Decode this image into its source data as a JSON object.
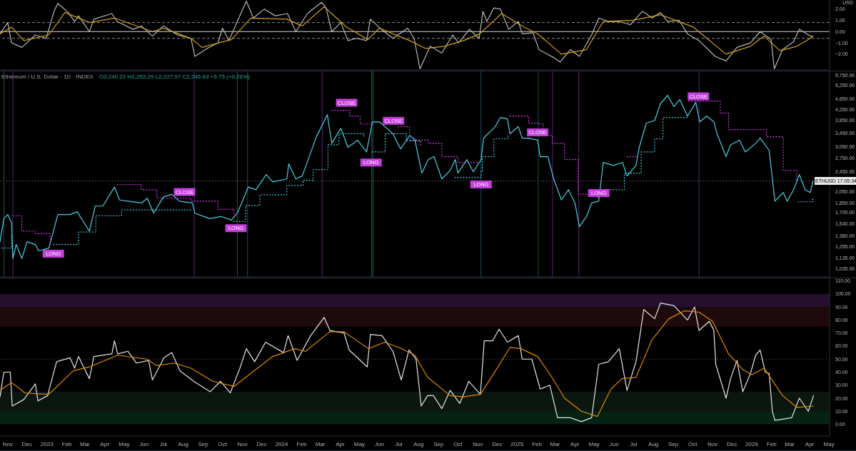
{
  "chart_data": [
    {
      "type": "line",
      "ylabel": "USD",
      "xlim": [
        "2022-10-20",
        "2026-05-02"
      ],
      "ylim": [
        -3.4,
        2.8
      ],
      "yticks": [
        {
          "value": 2,
          "label": "2.00"
        },
        {
          "value": 1,
          "label": "1.00"
        },
        {
          "value": 0,
          "label": "0.00"
        },
        {
          "value": -1,
          "label": "−1.00"
        },
        {
          "value": -2,
          "label": "−2.00"
        }
      ],
      "tick_labels": "y",
      "marker": "none",
      "ref_lines": [
        {
          "axis": "y",
          "value": 0,
          "color": "#d9d9d9",
          "line_style": "solid"
        },
        {
          "axis": "y",
          "value": 0.8,
          "color": "#8a8a8a",
          "line_style": "dashed"
        },
        {
          "axis": "y",
          "value": -0.6,
          "color": "#8a8a8a",
          "line_style": "dashed"
        }
      ],
      "series": [
        {
          "color": "#b8b8b8",
          "x": [
            "2022-10-20",
            "2022-11-01",
            "2022-11-07",
            "2022-11-23",
            "2022-12-14",
            "2022-12-31",
            "2023-01-12",
            "2023-01-18",
            "2023-02-03",
            "2023-02-13",
            "2023-02-19",
            "2023-03-08",
            "2023-03-15",
            "2023-04-12",
            "2023-04-20",
            "2023-05-15",
            "2023-05-28",
            "2023-06-14",
            "2023-07-01",
            "2023-07-23",
            "2023-08-13",
            "2023-08-19",
            "2023-09-07",
            "2023-09-24",
            "2023-10-01",
            "2023-10-11",
            "2023-10-24",
            "2023-11-07",
            "2023-11-18",
            "2023-12-05",
            "2023-12-22",
            "2024-01-10",
            "2024-01-23",
            "2024-02-10",
            "2024-03-03",
            "2024-03-10",
            "2024-03-19",
            "2024-04-02",
            "2024-04-13",
            "2024-04-27",
            "2024-05-12",
            "2024-05-18",
            "2024-06-04",
            "2024-06-22",
            "2024-07-15",
            "2024-07-25",
            "2024-08-03",
            "2024-08-19",
            "2024-09-06",
            "2024-09-23",
            "2024-10-02",
            "2024-10-19",
            "2024-11-03",
            "2024-11-09",
            "2024-11-15",
            "2024-11-26",
            "2024-12-06",
            "2024-12-19",
            "2025-01-03",
            "2025-01-09",
            "2025-01-26",
            "2025-02-04",
            "2025-02-27",
            "2025-03-09",
            "2025-03-25",
            "2025-04-08",
            "2025-04-27",
            "2025-05-08",
            "2025-05-23",
            "2025-06-09",
            "2025-06-26",
            "2025-07-15",
            "2025-07-30",
            "2025-08-12",
            "2025-08-23",
            "2025-09-10",
            "2025-09-23",
            "2025-10-11",
            "2025-11-05",
            "2025-11-22",
            "2025-12-09",
            "2025-12-30",
            "2026-01-14",
            "2026-01-31",
            "2026-02-05",
            "2026-02-18",
            "2026-03-07",
            "2026-03-16",
            "2026-04-02",
            "2026-04-06"
          ],
          "values": [
            -0.2,
            0.8,
            -1.0,
            -1.4,
            -0.3,
            -0.6,
            1.8,
            2.5,
            1.7,
            0.9,
            1.4,
            0.0,
            1.1,
            1.6,
            0.9,
            0.2,
            0.5,
            -0.4,
            0.5,
            -0.3,
            -0.6,
            -2.2,
            -1.5,
            -1.0,
            0.3,
            -0.8,
            0.9,
            2.7,
            1.2,
            2.0,
            1.4,
            1.6,
            0.0,
            1.6,
            2.6,
            2.1,
            0.0,
            0.8,
            -0.8,
            -0.6,
            -0.8,
            1.1,
            0.2,
            -0.6,
            0.3,
            -0.6,
            -3.3,
            -1.3,
            -1.9,
            -0.3,
            -1.0,
            0.2,
            -0.6,
            1.8,
            0.9,
            2.1,
            2.0,
            0.2,
            0.9,
            -0.2,
            -0.1,
            -1.6,
            -2.3,
            -2.7,
            -1.6,
            -2.2,
            -0.3,
            1.2,
            0.9,
            0.9,
            0.6,
            1.8,
            1.2,
            1.7,
            0.9,
            1.0,
            -0.2,
            -0.8,
            -2.2,
            -2.6,
            -1.4,
            -1.0,
            0.0,
            -0.7,
            -3.3,
            -1.6,
            -0.9,
            0.2,
            -0.4,
            -0.4
          ]
        },
        {
          "color": "#d4a017",
          "x": [
            "2022-10-20",
            "2022-11-07",
            "2022-11-26",
            "2023-01-04",
            "2023-01-29",
            "2023-03-08",
            "2023-04-16",
            "2023-06-14",
            "2023-07-01",
            "2023-08-13",
            "2023-08-30",
            "2023-10-15",
            "2023-11-14",
            "2024-01-09",
            "2024-02-02",
            "2024-03-07",
            "2024-04-11",
            "2024-05-14",
            "2024-06-01",
            "2024-07-18",
            "2024-08-12",
            "2024-09-10",
            "2024-10-10",
            "2024-11-04",
            "2024-12-08",
            "2025-01-12",
            "2025-02-02",
            "2025-03-11",
            "2025-04-19",
            "2025-05-15",
            "2025-07-01",
            "2025-08-12",
            "2025-10-02",
            "2025-11-22",
            "2025-12-30",
            "2026-01-20",
            "2026-02-14",
            "2026-03-12",
            "2026-04-02",
            "2026-04-06"
          ],
          "values": [
            -0.2,
            0.4,
            -0.8,
            -0.3,
            1.7,
            0.8,
            1.2,
            0.0,
            0.3,
            -0.6,
            -1.4,
            -0.7,
            1.2,
            1.1,
            0.5,
            2.2,
            0.4,
            -0.7,
            0.3,
            -0.8,
            -1.5,
            -1.3,
            -0.8,
            -0.2,
            1.6,
            0.4,
            -0.2,
            -2.0,
            -1.6,
            0.9,
            1.0,
            1.5,
            0.4,
            -2.0,
            -1.3,
            -0.4,
            -1.7,
            -1.3,
            -0.6,
            -0.4
          ]
        }
      ]
    },
    {
      "type": "line",
      "title": "Ethereum / U.S. Dollar · 1D · INDEX",
      "subtitle": "O2,240.21 H2,253.29 L2,227.97 C2,245.63 +5.75 (+0.26%)",
      "xlim": [
        "2022-10-20",
        "2026-05-02"
      ],
      "ylim": [
        960,
        5950
      ],
      "log": true,
      "tick_labels": "y",
      "marker": "none",
      "yticks": [
        {
          "value": 5750,
          "label": "5,750.00"
        },
        {
          "value": 5250,
          "label": "5,250.00"
        },
        {
          "value": 4650,
          "label": "4,650.00"
        },
        {
          "value": 4250,
          "label": "4,250.00"
        },
        {
          "value": 3850,
          "label": "3,850.00"
        },
        {
          "value": 3450,
          "label": "3,450.00"
        },
        {
          "value": 3050,
          "label": "3,050.00"
        },
        {
          "value": 2750,
          "label": "2,750.00"
        },
        {
          "value": 2450,
          "label": "2,450.00"
        },
        {
          "value": 2050,
          "label": "2,050.00"
        },
        {
          "value": 1850,
          "label": "1,850.00"
        },
        {
          "value": 1700,
          "label": "1,700.00"
        },
        {
          "value": 1540,
          "label": "1,540.00"
        },
        {
          "value": 1380,
          "label": "1,380.00"
        },
        {
          "value": 1255,
          "label": "1,255.00"
        },
        {
          "value": 1135,
          "label": "1,135.00"
        },
        {
          "value": 1035,
          "label": "1,035.00"
        }
      ],
      "ref_lines": [
        {
          "axis": "y",
          "value": 2245.63,
          "color": "#8a8a8a",
          "line_style": "dotted"
        },
        {
          "axis": "x",
          "value": "2022-10-26",
          "color": "#13585e"
        },
        {
          "axis": "x",
          "value": "2022-11-09",
          "color": "#5a2570"
        },
        {
          "axis": "x",
          "value": "2023-08-18",
          "color": "#5a2570"
        },
        {
          "axis": "x",
          "value": "2023-10-24",
          "color": "#13585e"
        },
        {
          "axis": "x",
          "value": "2023-11-09",
          "color": "#13585e"
        },
        {
          "axis": "x",
          "value": "2024-03-04",
          "color": "#5a2570"
        },
        {
          "axis": "x",
          "value": "2024-05-20",
          "color": "#13585e"
        },
        {
          "axis": "x",
          "value": "2024-05-22",
          "color": "#13585e"
        },
        {
          "axis": "x",
          "value": "2024-11-06",
          "color": "#13585e"
        },
        {
          "axis": "x",
          "value": "2025-02-03",
          "color": "#13585e"
        },
        {
          "axis": "x",
          "value": "2025-02-25",
          "color": "#5a2570"
        },
        {
          "axis": "x",
          "value": "2025-04-07",
          "color": "#5a2570"
        },
        {
          "axis": "x",
          "value": "2025-10-11",
          "color": "#5a2570"
        }
      ],
      "annotations": [
        "ETHUSD 17:05:34",
        {
          "text": "LONG",
          "x": "2023-01-11",
          "y": 1180
        },
        {
          "text": "CLOSE",
          "x": "2023-08-03",
          "y": 2040
        },
        {
          "text": "LONG",
          "x": "2023-10-22",
          "y": 1480
        },
        {
          "text": "CLOSE",
          "x": "2024-04-11",
          "y": 4500
        },
        {
          "text": "LONG",
          "x": "2024-05-19",
          "y": 2650
        },
        {
          "text": "CLOSE",
          "x": "2024-06-23",
          "y": 3840
        },
        {
          "text": "LONG",
          "x": "2024-11-06",
          "y": 2180
        },
        {
          "text": "CLOSE",
          "x": "2025-02-02",
          "y": 3460
        },
        {
          "text": "LONG",
          "x": "2025-05-08",
          "y": 2020
        },
        {
          "text": "CLOSE",
          "x": "2025-10-10",
          "y": 4770
        }
      ],
      "series": [
        {
          "color": "#4dd0e1",
          "x": [
            "2022-10-20",
            "2022-10-26",
            "2022-11-01",
            "2022-11-07",
            "2022-11-09",
            "2022-11-14",
            "2022-11-23",
            "2022-12-01",
            "2022-12-14",
            "2022-12-19",
            "2023-01-04",
            "2023-01-18",
            "2023-02-06",
            "2023-02-17",
            "2023-03-08",
            "2023-03-17",
            "2023-03-29",
            "2023-04-16",
            "2023-04-24",
            "2023-05-07",
            "2023-05-28",
            "2023-06-06",
            "2023-06-16",
            "2023-07-01",
            "2023-07-14",
            "2023-07-26",
            "2023-08-15",
            "2023-08-19",
            "2023-09-11",
            "2023-09-29",
            "2023-10-15",
            "2023-10-24",
            "2023-11-10",
            "2023-11-22",
            "2023-12-08",
            "2023-12-18",
            "2024-01-09",
            "2024-01-12",
            "2024-01-23",
            "2024-02-02",
            "2024-02-24",
            "2024-03-12",
            "2024-03-19",
            "2024-04-02",
            "2024-04-13",
            "2024-04-28",
            "2024-05-12",
            "2024-05-21",
            "2024-06-01",
            "2024-06-22",
            "2024-07-04",
            "2024-07-18",
            "2024-07-26",
            "2024-08-06",
            "2024-08-16",
            "2024-08-25",
            "2024-09-06",
            "2024-09-19",
            "2024-09-27",
            "2024-10-01",
            "2024-10-15",
            "2024-10-25",
            "2024-11-06",
            "2024-11-10",
            "2024-11-28",
            "2024-12-06",
            "2024-12-17",
            "2024-12-21",
            "2025-01-03",
            "2025-01-09",
            "2025-01-19",
            "2025-02-02",
            "2025-02-06",
            "2025-02-18",
            "2025-02-27",
            "2025-03-11",
            "2025-03-22",
            "2025-04-01",
            "2025-04-08",
            "2025-04-19",
            "2025-04-27",
            "2025-05-08",
            "2025-05-15",
            "2025-05-31",
            "2025-06-14",
            "2025-06-21",
            "2025-07-05",
            "2025-07-10",
            "2025-07-21",
            "2025-08-03",
            "2025-08-12",
            "2025-08-23",
            "2025-09-02",
            "2025-09-11",
            "2025-09-23",
            "2025-10-06",
            "2025-10-12",
            "2025-10-23",
            "2025-11-03",
            "2025-11-08",
            "2025-11-22",
            "2025-11-29",
            "2025-12-13",
            "2025-12-22",
            "2026-01-07",
            "2026-01-14",
            "2026-01-28",
            "2026-02-06",
            "2026-02-19",
            "2026-02-25",
            "2026-03-07",
            "2026-03-16",
            "2026-03-25",
            "2026-04-02",
            "2026-04-06"
          ],
          "values": [
            1310,
            1610,
            1670,
            1550,
            1130,
            1280,
            1130,
            1310,
            1280,
            1210,
            1240,
            1670,
            1670,
            1710,
            1440,
            1800,
            1800,
            2130,
            1900,
            1880,
            1850,
            1930,
            1690,
            1950,
            2000,
            1880,
            1850,
            1690,
            1610,
            1640,
            1590,
            1690,
            2130,
            2080,
            2380,
            2230,
            2290,
            2620,
            2290,
            2350,
            3330,
            4050,
            3140,
            3590,
            3030,
            3230,
            2910,
            3800,
            3800,
            3420,
            2990,
            3370,
            3250,
            2410,
            2720,
            2790,
            2290,
            2470,
            2720,
            2410,
            2720,
            2440,
            2720,
            3290,
            3640,
            3950,
            3900,
            3420,
            3640,
            3290,
            3290,
            3230,
            2790,
            2790,
            2290,
            1900,
            2080,
            1850,
            1500,
            1640,
            1850,
            1880,
            2650,
            2580,
            2650,
            2350,
            2580,
            3030,
            3760,
            3850,
            4460,
            4810,
            4350,
            4630,
            4000,
            4520,
            3800,
            4000,
            3800,
            3420,
            2790,
            3100,
            3230,
            2910,
            3140,
            3290,
            2950,
            1880,
            2030,
            1880,
            2080,
            2380,
            2080,
            2030,
            2246
          ]
        },
        {
          "type": "step",
          "color": "#e040fb",
          "line_style": "dotted",
          "x": [
            "2022-11-09",
            "2022-11-23",
            "2022-12-14",
            "2023-01-06",
            "2023-01-07",
            "2023-04-20",
            "2023-05-28",
            "2023-06-21",
            "2023-08-13",
            "2023-09-24",
            "2023-10-19",
            "2023-10-20",
            "2024-03-19",
            "2024-04-16",
            "2024-05-02",
            "2024-05-19",
            "2024-05-20",
            "2024-06-30",
            "2024-07-18",
            "2024-08-16",
            "2024-09-06",
            "2024-10-01",
            "2024-10-31",
            "2024-11-01",
            "2024-12-21",
            "2025-01-19",
            "2025-02-02",
            "2025-02-11",
            "2025-02-25",
            "2025-03-16",
            "2025-04-06",
            "2025-05-06",
            "2025-05-07",
            "2025-06-21",
            "2025-07-07",
            "2025-07-08",
            "2025-09-25",
            "2025-10-28",
            "2025-11-13",
            "2025-11-26",
            "2026-01-24",
            "2026-02-19",
            "2026-03-12"
          ],
          "values": [
            1650,
            1440,
            1410,
            1280,
            null,
            2180,
            2080,
            1930,
            1880,
            1750,
            1640,
            null,
            4210,
            4000,
            3730,
            3690,
            null,
            3640,
            3230,
            3140,
            2790,
            2650,
            2550,
            null,
            4000,
            3760,
            3730,
            3370,
            3140,
            2720,
            2000,
            1930,
            null,
            2790,
            2720,
            null,
            4570,
            4570,
            4110,
            3550,
            3330,
            2470,
            2260
          ]
        },
        {
          "type": "step",
          "color": "#4dd0e1",
          "line_style": "dotted",
          "x": [
            "2022-10-23",
            "2022-11-07",
            "2022-11-08",
            "2023-01-11",
            "2023-02-19",
            "2023-03-18",
            "2023-04-27",
            "2023-08-15",
            "2023-08-16",
            "2023-10-18",
            "2023-11-06",
            "2023-11-28",
            "2024-01-09",
            "2024-02-03",
            "2024-02-19",
            "2024-03-13",
            "2024-03-30",
            "2024-05-08",
            "2024-05-09",
            "2024-05-21",
            "2024-06-10",
            "2024-07-13",
            "2024-08-04",
            "2024-08-05",
            "2024-09-26",
            "2024-11-06",
            "2024-11-08",
            "2024-11-26",
            "2024-12-18",
            "2024-12-19",
            "2025-05-08",
            "2025-05-23",
            "2025-06-17",
            "2025-07-13",
            "2025-08-03",
            "2025-08-16",
            "2025-09-23",
            "2025-09-24",
            "2026-03-14",
            "2026-04-06"
          ],
          "values": [
            1240,
            1400,
            null,
            1280,
            1430,
            1650,
            1740,
            1740,
            null,
            1570,
            1810,
            1990,
            2160,
            2260,
            2490,
            3100,
            3420,
            3310,
            null,
            2910,
            3420,
            3210,
            3100,
            null,
            2320,
            2450,
            2790,
            3270,
            3370,
            null,
            2030,
            2080,
            2410,
            2910,
            3270,
            3950,
            4050,
            null,
            1870,
            1940
          ]
        }
      ]
    },
    {
      "type": "line",
      "xlim": [
        "2022-10-20",
        "2026-05-02"
      ],
      "ylim": [
        -9,
        112
      ],
      "marker": "none",
      "xticks": [
        {
          "value": "2022-11-01",
          "label": "Nov"
        },
        {
          "value": "2022-12-01",
          "label": "Dec"
        },
        {
          "value": "2023-01-01",
          "label": "2023"
        },
        {
          "value": "2023-02-01",
          "label": "Feb"
        },
        {
          "value": "2023-03-01",
          "label": "Mar"
        },
        {
          "value": "2023-04-01",
          "label": "Apr"
        },
        {
          "value": "2023-05-01",
          "label": "May"
        },
        {
          "value": "2023-06-01",
          "label": "Jun"
        },
        {
          "value": "2023-07-01",
          "label": "Jul"
        },
        {
          "value": "2023-08-01",
          "label": "Aug"
        },
        {
          "value": "2023-09-01",
          "label": "Sep"
        },
        {
          "value": "2023-10-01",
          "label": "Oct"
        },
        {
          "value": "2023-11-01",
          "label": "Nov"
        },
        {
          "value": "2023-12-01",
          "label": "Dec"
        },
        {
          "value": "2024-01-01",
          "label": "2024"
        },
        {
          "value": "2024-02-01",
          "label": "Feb"
        },
        {
          "value": "2024-03-01",
          "label": "Mar"
        },
        {
          "value": "2024-04-01",
          "label": "Apr"
        },
        {
          "value": "2024-05-01",
          "label": "May"
        },
        {
          "value": "2024-06-01",
          "label": "Jun"
        },
        {
          "value": "2024-07-01",
          "label": "Jul"
        },
        {
          "value": "2024-08-01",
          "label": "Aug"
        },
        {
          "value": "2024-09-01",
          "label": "Sep"
        },
        {
          "value": "2024-10-01",
          "label": "Oct"
        },
        {
          "value": "2024-11-01",
          "label": "Nov"
        },
        {
          "value": "2024-12-01",
          "label": "Dec"
        },
        {
          "value": "2025-01-01",
          "label": "2025"
        },
        {
          "value": "2025-02-01",
          "label": "Feb"
        },
        {
          "value": "2025-03-01",
          "label": "Mar"
        },
        {
          "value": "2025-04-01",
          "label": "Apr"
        },
        {
          "value": "2025-05-01",
          "label": "May"
        },
        {
          "value": "2025-06-01",
          "label": "Jun"
        },
        {
          "value": "2025-07-01",
          "label": "Jul"
        },
        {
          "value": "2025-08-01",
          "label": "Aug"
        },
        {
          "value": "2025-09-01",
          "label": "Sep"
        },
        {
          "value": "2025-10-01",
          "label": "Oct"
        },
        {
          "value": "2025-11-01",
          "label": "Nov"
        },
        {
          "value": "2025-12-01",
          "label": "Dec"
        },
        {
          "value": "2026-01-01",
          "label": "2026"
        },
        {
          "value": "2026-02-01",
          "label": "Feb"
        },
        {
          "value": "2026-03-01",
          "label": "Mar"
        },
        {
          "value": "2026-04-01",
          "label": "Apr"
        },
        {
          "value": "2026-05-01",
          "label": "May"
        }
      ],
      "yticks": [
        {
          "value": 110,
          "label": "110.00"
        },
        {
          "value": 100,
          "label": "100.00"
        },
        {
          "value": 90,
          "label": "90.00"
        },
        {
          "value": 80,
          "label": "80.00"
        },
        {
          "value": 70,
          "label": "70.00"
        },
        {
          "value": 60,
          "label": "60.00"
        },
        {
          "value": 50,
          "label": "50.00"
        },
        {
          "value": 40,
          "label": "40.00"
        },
        {
          "value": 30,
          "label": "30.00"
        },
        {
          "value": 20,
          "label": "20.00"
        },
        {
          "value": 10,
          "label": "10.00"
        },
        {
          "value": 0,
          "label": "0.00"
        }
      ],
      "bands": [
        {
          "axis": "y",
          "from": 90,
          "to": 100,
          "color": "#24102e"
        },
        {
          "axis": "y",
          "from": 75,
          "to": 90,
          "color": "#1e0a0c"
        },
        {
          "axis": "y",
          "from": 10,
          "to": 25,
          "color": "#0b160e"
        },
        {
          "axis": "y",
          "from": 0,
          "to": 10,
          "color": "#052312"
        }
      ],
      "ref_lines": [
        {
          "axis": "y",
          "value": 50,
          "color": "#666666",
          "line_style": "dotted"
        }
      ],
      "series": [
        {
          "color": "#e6e6e6",
          "x": [
            "2022-10-20",
            "2022-10-26",
            "2022-11-05",
            "2022-11-08",
            "2022-11-26",
            "2022-12-14",
            "2022-12-18",
            "2023-01-02",
            "2023-01-16",
            "2023-02-06",
            "2023-02-13",
            "2023-02-19",
            "2023-03-08",
            "2023-03-15",
            "2023-04-12",
            "2023-04-16",
            "2023-04-21",
            "2023-05-07",
            "2023-05-20",
            "2023-06-08",
            "2023-06-14",
            "2023-07-02",
            "2023-07-14",
            "2023-07-27",
            "2023-08-17",
            "2023-09-12",
            "2023-09-28",
            "2023-10-13",
            "2023-10-28",
            "2023-11-07",
            "2023-11-20",
            "2023-12-07",
            "2024-01-04",
            "2024-01-11",
            "2024-01-25",
            "2024-02-15",
            "2024-03-07",
            "2024-03-16",
            "2024-04-07",
            "2024-04-15",
            "2024-05-13",
            "2024-05-18",
            "2024-06-05",
            "2024-06-22",
            "2024-07-05",
            "2024-07-17",
            "2024-07-28",
            "2024-08-05",
            "2024-08-15",
            "2024-08-24",
            "2024-09-06",
            "2024-09-19",
            "2024-10-04",
            "2024-10-18",
            "2024-11-05",
            "2024-11-11",
            "2024-11-24",
            "2024-12-04",
            "2024-12-17",
            "2025-01-03",
            "2025-01-09",
            "2025-01-24",
            "2025-02-06",
            "2025-02-21",
            "2025-03-05",
            "2025-03-25",
            "2025-04-11",
            "2025-04-27",
            "2025-05-08",
            "2025-05-23",
            "2025-06-09",
            "2025-06-21",
            "2025-07-05",
            "2025-07-17",
            "2025-08-03",
            "2025-08-12",
            "2025-09-02",
            "2025-09-23",
            "2025-10-04",
            "2025-10-11",
            "2025-10-27",
            "2025-11-03",
            "2025-11-06",
            "2025-11-22",
            "2025-11-29",
            "2025-12-09",
            "2025-12-18",
            "2025-12-30",
            "2026-01-07",
            "2026-01-14",
            "2026-01-22",
            "2026-01-28",
            "2026-02-02",
            "2026-02-06",
            "2026-03-04",
            "2026-03-16",
            "2026-03-30",
            "2026-04-07"
          ],
          "values": [
            21,
            40,
            40,
            14,
            19,
            31,
            18,
            22,
            48,
            51,
            43,
            52,
            35,
            52,
            54,
            64,
            54,
            56,
            47,
            49,
            34,
            51,
            55,
            41,
            33,
            25,
            33,
            24,
            43,
            58,
            48,
            63,
            55,
            68,
            49,
            68,
            82,
            72,
            70,
            57,
            44,
            69,
            68,
            56,
            34,
            57,
            50,
            14,
            22,
            22,
            12,
            26,
            16,
            33,
            23,
            64,
            64,
            73,
            63,
            68,
            50,
            50,
            27,
            30,
            5,
            5,
            2,
            5,
            46,
            48,
            58,
            26,
            48,
            88,
            81,
            93,
            91,
            80,
            90,
            72,
            79,
            72,
            46,
            20,
            35,
            49,
            25,
            39,
            53,
            57,
            40,
            39,
            10,
            3,
            5,
            20,
            10,
            22
          ]
        },
        {
          "color": "#e08a00",
          "x": [
            "2022-10-20",
            "2022-11-07",
            "2022-11-28",
            "2023-01-04",
            "2023-02-11",
            "2023-03-08",
            "2023-04-21",
            "2023-06-06",
            "2023-06-20",
            "2023-07-18",
            "2023-08-13",
            "2023-09-16",
            "2023-10-19",
            "2023-11-14",
            "2023-12-18",
            "2024-01-21",
            "2024-02-07",
            "2024-03-16",
            "2024-04-07",
            "2024-05-15",
            "2024-06-09",
            "2024-07-01",
            "2024-07-26",
            "2024-08-15",
            "2024-09-19",
            "2024-10-10",
            "2024-11-05",
            "2024-11-26",
            "2024-12-21",
            "2025-01-07",
            "2025-02-02",
            "2025-02-23",
            "2025-03-16",
            "2025-04-11",
            "2025-05-06",
            "2025-05-27",
            "2025-06-13",
            "2025-07-05",
            "2025-07-30",
            "2025-08-25",
            "2025-09-18",
            "2025-10-11",
            "2025-11-01",
            "2025-11-26",
            "2025-12-18",
            "2026-01-01",
            "2026-01-20",
            "2026-02-18",
            "2026-03-12",
            "2026-04-07"
          ],
          "values": [
            26,
            32,
            24,
            23,
            41,
            44,
            53,
            50,
            45,
            47,
            43,
            33,
            29,
            39,
            52,
            58,
            56,
            71,
            71,
            58,
            63,
            59,
            53,
            36,
            22,
            21,
            23,
            39,
            59,
            58,
            52,
            37,
            20,
            10,
            6,
            27,
            35,
            36,
            65,
            81,
            87,
            86,
            79,
            54,
            42,
            38,
            43,
            22,
            13,
            14
          ]
        }
      ]
    }
  ]
}
